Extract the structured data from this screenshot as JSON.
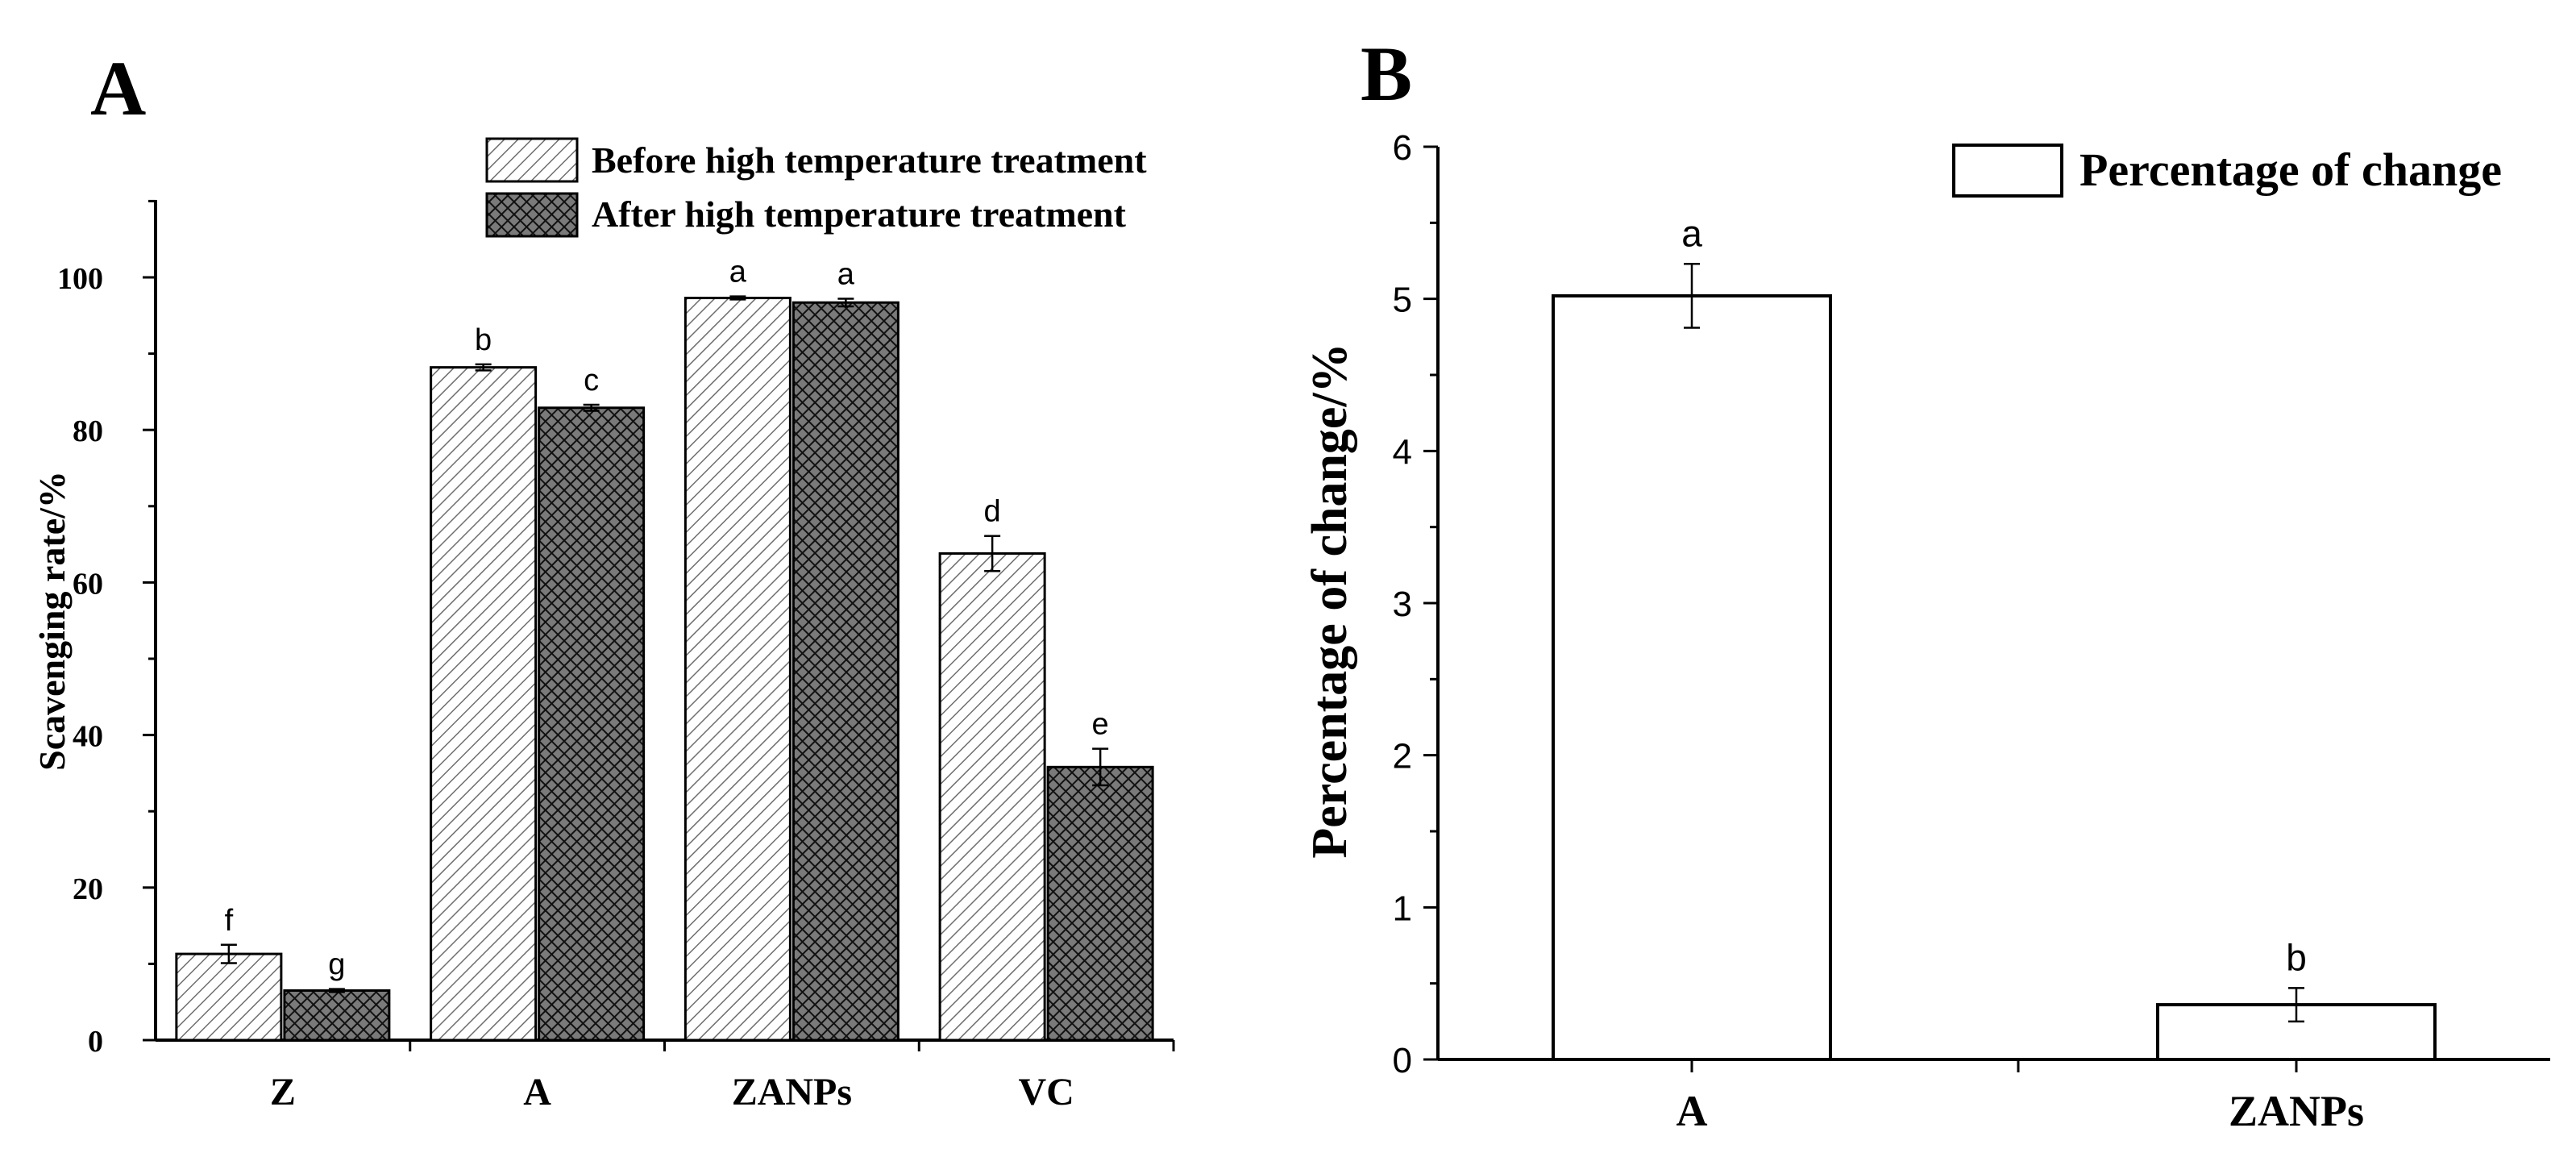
{
  "chart_data": [
    {
      "panel": "A",
      "type": "bar",
      "title": "",
      "xlabel": "",
      "ylabel": "Scavenging rate/%",
      "ylim": [
        0,
        110
      ],
      "yticks": [
        0,
        20,
        40,
        60,
        80,
        100
      ],
      "grid": false,
      "legend_position": "top-right",
      "categories": [
        "Z",
        "A",
        "ZANPs",
        "VC"
      ],
      "series": [
        {
          "name": "Before high temperature treatment",
          "pattern": "diagonal-hatch",
          "values": [
            11.3,
            88.2,
            97.3,
            63.8
          ],
          "errors": [
            1.2,
            0.4,
            0.2,
            2.3
          ],
          "letters": [
            "f",
            "b",
            "a",
            "d"
          ]
        },
        {
          "name": "After high temperature treatment",
          "pattern": "cross-hatch",
          "values": [
            6.5,
            82.9,
            96.7,
            35.8
          ],
          "errors": [
            0.2,
            0.4,
            0.5,
            2.4
          ],
          "letters": [
            "g",
            "c",
            "a",
            "e"
          ]
        }
      ]
    },
    {
      "panel": "B",
      "type": "bar",
      "title": "",
      "xlabel": "",
      "ylabel": "Percentage of change/%",
      "ylim": [
        0,
        6
      ],
      "yticks": [
        0,
        1,
        2,
        3,
        4,
        5,
        6
      ],
      "grid": false,
      "legend_position": "top-right",
      "categories": [
        "A",
        "ZANPs"
      ],
      "series": [
        {
          "name": "Percentage of change",
          "pattern": "none",
          "values": [
            5.02,
            0.36
          ],
          "errors": [
            0.21,
            0.11
          ],
          "letters": [
            "a",
            "b"
          ]
        }
      ]
    }
  ],
  "colors": {
    "axis": "#000000",
    "bar_fill": "#ffffff",
    "hatch_dark_bg": "#3a3a3a",
    "hatch_light_line": "#777777",
    "cross_line": "#111111"
  }
}
